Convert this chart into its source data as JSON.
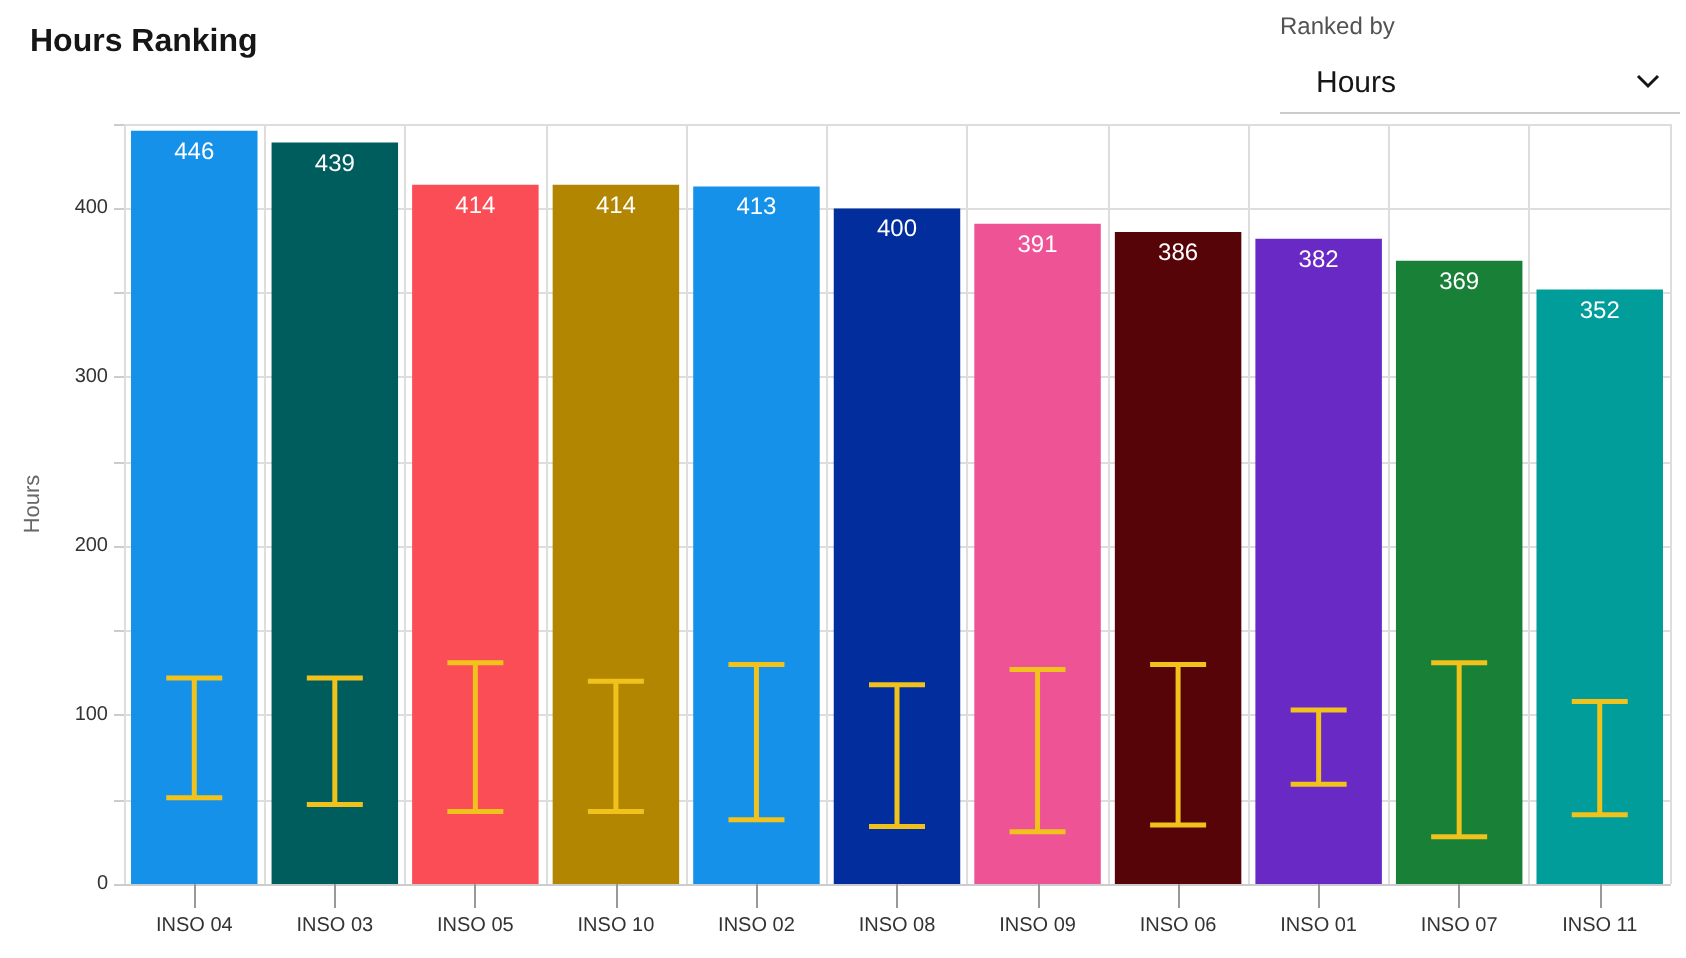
{
  "chart_data": {
    "type": "bar",
    "title": "Hours Ranking",
    "ylabel": "Hours",
    "categories": [
      "INSO 04",
      "INSO 03",
      "INSO 05",
      "INSO 10",
      "INSO 02",
      "INSO 08",
      "INSO 09",
      "INSO 06",
      "INSO 01",
      "INSO 07",
      "INSO 11"
    ],
    "values": [
      446,
      439,
      414,
      414,
      413,
      400,
      391,
      386,
      382,
      369,
      352
    ],
    "colors": [
      "#1591ea",
      "#005d5d",
      "#fa4d56",
      "#b28600",
      "#1591ea",
      "#012e9c",
      "#ee5396",
      "#570408",
      "#6929c4",
      "#198038",
      "#009d9a"
    ],
    "errors": [
      [
        51,
        122
      ],
      [
        47,
        122
      ],
      [
        43,
        131
      ],
      [
        43,
        120
      ],
      [
        38,
        130
      ],
      [
        34,
        118
      ],
      [
        31,
        127
      ],
      [
        35,
        130
      ],
      [
        59,
        103
      ],
      [
        28,
        131
      ],
      [
        41,
        108
      ]
    ],
    "data_labels": true,
    "ylim": [
      0,
      450
    ],
    "yticks": [
      0,
      {
        "value": 50,
        "label": null
      },
      100,
      {
        "value": 150,
        "label": null
      },
      200,
      {
        "value": 250,
        "label": null
      },
      300,
      {
        "value": 350,
        "label": null
      },
      400,
      {
        "value": 450,
        "label": null
      }
    ],
    "grid": true,
    "annotations": [
      "Ranked by",
      "Hours"
    ]
  }
}
